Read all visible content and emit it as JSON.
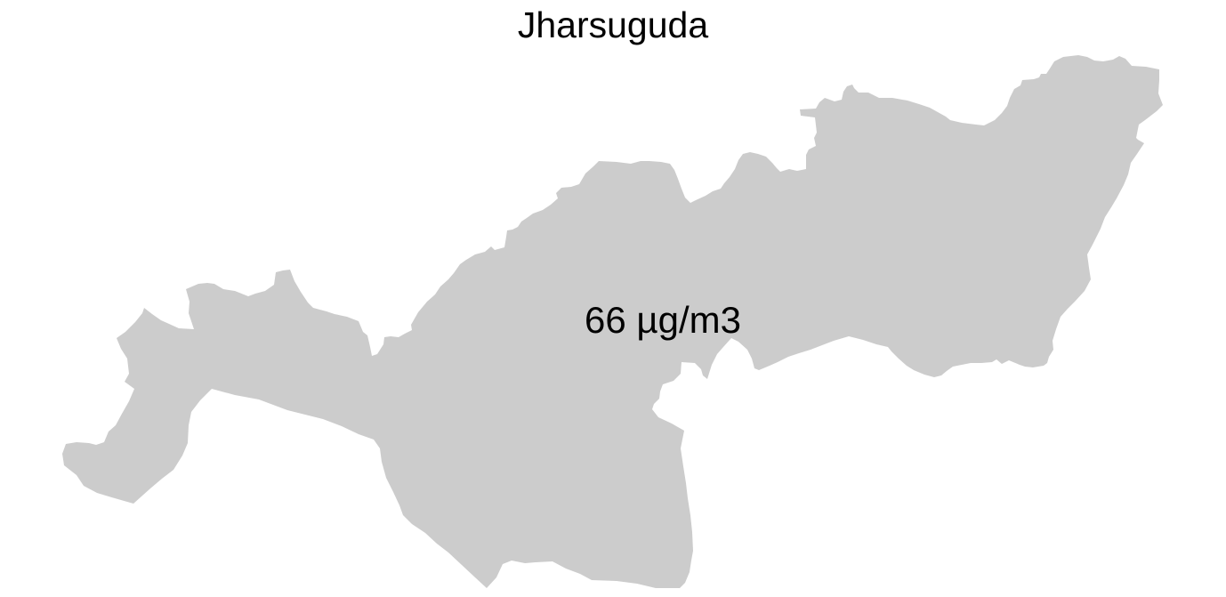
{
  "map": {
    "title": "Jharsuguda",
    "region": {
      "label": "66 µg/m3",
      "fill_color": "#cccccc"
    }
  },
  "background_color": "#ffffff"
}
